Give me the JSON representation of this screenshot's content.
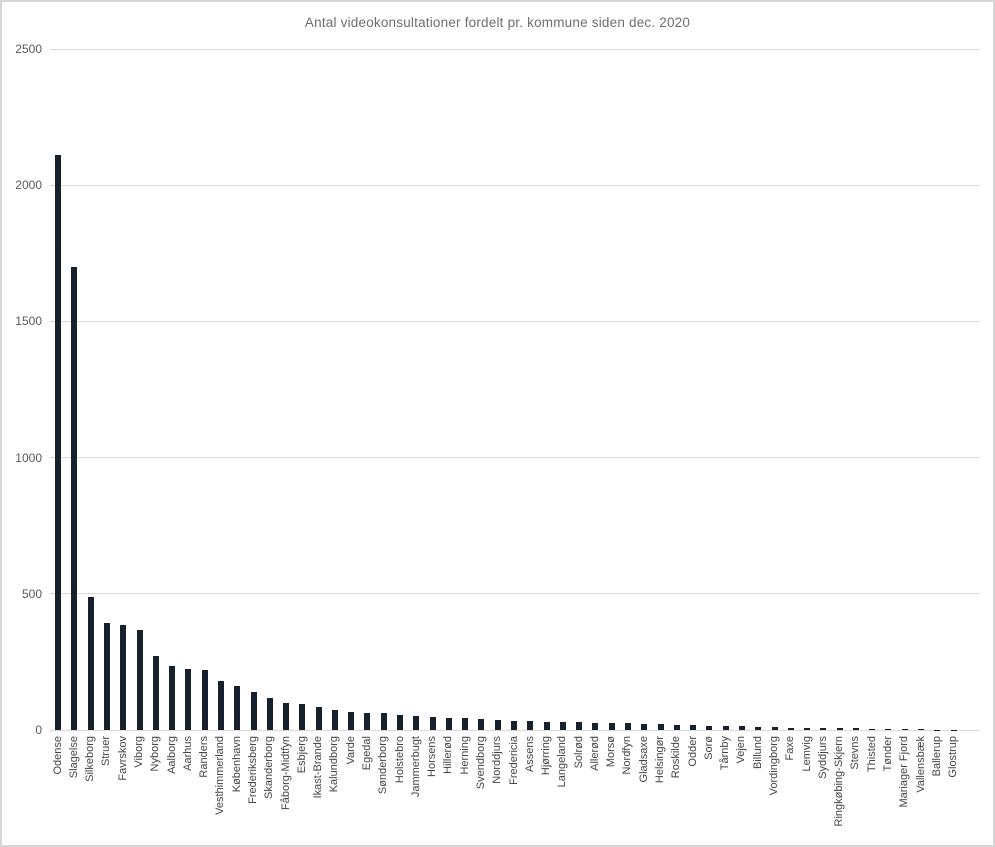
{
  "chart_data": {
    "type": "bar",
    "title": "Antal videokonsultationer fordelt pr. kommune siden dec. 2020",
    "categories": [
      "Odense",
      "Slagelse",
      "Silkeborg",
      "Struer",
      "Favrskov",
      "Viborg",
      "Nyborg",
      "Aalborg",
      "Aarhus",
      "Randers",
      "Vesthimmerland",
      "København",
      "Frederiksberg",
      "Skanderborg",
      "Fåborg-Midtfyn",
      "Esbjerg",
      "Ikast-Brande",
      "Kalundborg",
      "Varde",
      "Egedal",
      "Sønderborg",
      "Holstebro",
      "Jammerbugt",
      "Horsens",
      "Hillerød",
      "Herning",
      "Svendborg",
      "Norddjurs",
      "Fredericia",
      "Assens",
      "Hjørring",
      "Langeland",
      "Solrød",
      "Allerød",
      "Morsø",
      "Nordfyn",
      "Gladsaxe",
      "Helsingør",
      "Roskilde",
      "Odder",
      "Sorø",
      "Tårnby",
      "Vejen",
      "Billund",
      "Vordingborg",
      "Faxe",
      "Lemvig",
      "Syddjurs",
      "Ringkøbing-Skjern",
      "Stevns",
      "Thisted",
      "Tønder",
      "Mariager Fjord",
      "Vallensbæk",
      "Ballerup",
      "Glostrup"
    ],
    "values": [
      2110,
      1700,
      490,
      392,
      384,
      368,
      271,
      235,
      225,
      219,
      180,
      162,
      139,
      119,
      101,
      96,
      85,
      74,
      66,
      64,
      62,
      54,
      52,
      46,
      44,
      43,
      41,
      38,
      34,
      32,
      31,
      30,
      28,
      27,
      25,
      24,
      23,
      22,
      19,
      17,
      16,
      15,
      13,
      12,
      11,
      9,
      8,
      8,
      7,
      6,
      3,
      3,
      2,
      2,
      1,
      1
    ],
    "xlabel": "",
    "ylabel": "",
    "ylim": [
      0,
      2500
    ],
    "yticks": [
      0,
      500,
      1000,
      1500,
      2000,
      2500
    ],
    "grid": "horizontal",
    "legend": "none",
    "bar_color": "#16212c",
    "gridline_color": "#d9d9d9",
    "title_color": "#6e6e6e",
    "axis_tick_color": "#595959",
    "category_label_color": "#444444"
  }
}
